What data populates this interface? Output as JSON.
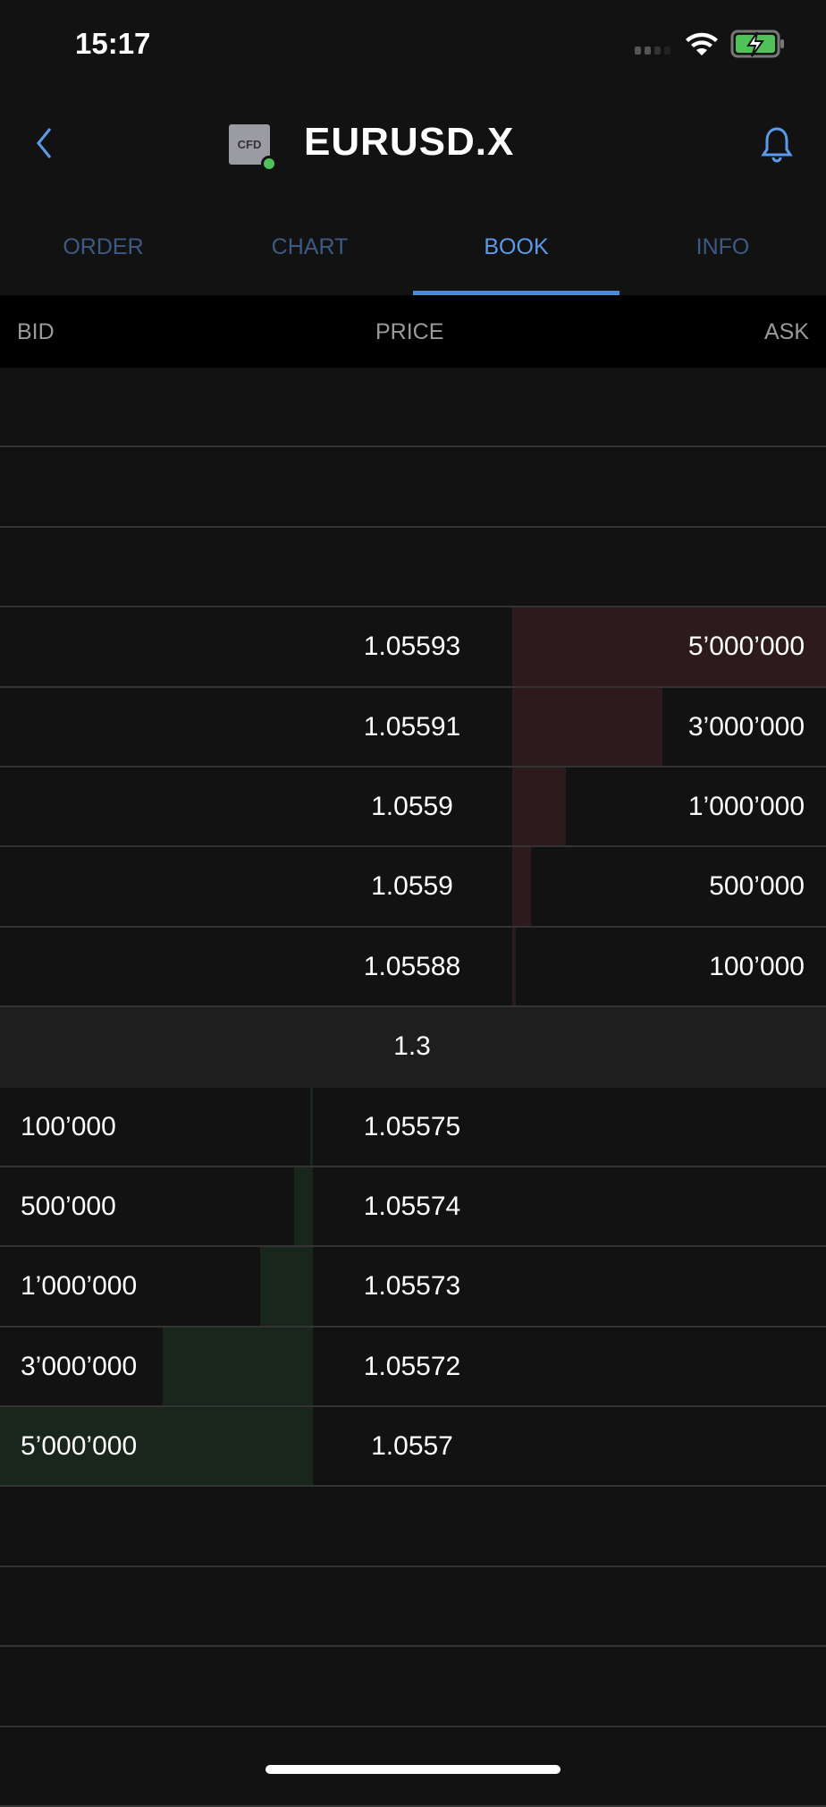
{
  "status_bar": {
    "time": "15:17"
  },
  "nav": {
    "badge": "CFD",
    "title": "EURUSD.X",
    "online_color": "#4fc25a"
  },
  "tabs": [
    {
      "label": "ORDER"
    },
    {
      "label": "CHART"
    },
    {
      "label": "BOOK",
      "active": true
    },
    {
      "label": "INFO"
    }
  ],
  "columns": {
    "bid": "BID",
    "price": "PRICE",
    "ask": "ASK"
  },
  "asks": [
    {
      "price": "1.05593",
      "qty": "5’000’000",
      "depth": 1.0
    },
    {
      "price": "1.05591",
      "qty": "3’000’000",
      "depth": 0.48
    },
    {
      "price": "1.0559",
      "qty": "1’000’000",
      "depth": 0.17
    },
    {
      "price": "1.0559",
      "qty": "500’000",
      "depth": 0.06
    },
    {
      "price": "1.05588",
      "qty": "100’000",
      "depth": 0.01
    }
  ],
  "spread": "1.3",
  "bids": [
    {
      "price": "1.05575",
      "qty": "100’000",
      "depth": 0.01
    },
    {
      "price": "1.05574",
      "qty": "500’000",
      "depth": 0.06
    },
    {
      "price": "1.05573",
      "qty": "1’000’000",
      "depth": 0.17
    },
    {
      "price": "1.05572",
      "qty": "3’000’000",
      "depth": 0.48
    },
    {
      "price": "1.0557",
      "qty": "5’000’000",
      "depth": 1.0
    }
  ],
  "colors": {
    "accent": "#5b9be9",
    "ask_bar": "#2c1a1c",
    "bid_bar": "#18261b"
  }
}
